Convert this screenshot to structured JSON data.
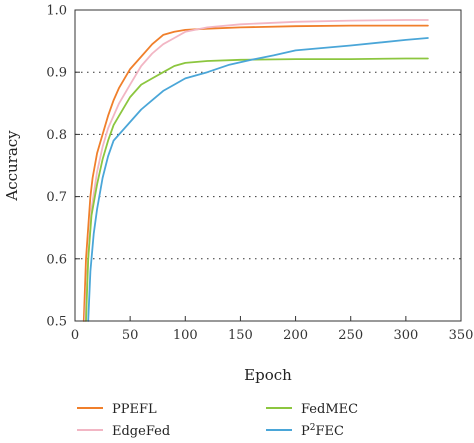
{
  "chart_data": {
    "type": "line",
    "title": "",
    "xlabel": "Epoch",
    "ylabel": "Accuracy",
    "xlim": [
      0,
      350
    ],
    "ylim": [
      0.5,
      1.0
    ],
    "xticks": [
      0,
      50,
      100,
      150,
      200,
      250,
      300,
      350
    ],
    "xtick_labels": [
      "0",
      "50",
      "100",
      "150",
      "200",
      "250",
      "300",
      "350"
    ],
    "yticks": [
      0.5,
      0.6,
      0.7,
      0.8,
      0.9,
      1.0
    ],
    "ytick_labels": [
      "0.5",
      "0.6",
      "0.7",
      "0.8",
      "0.9",
      "1.0"
    ],
    "grid": "dotted, horizontal",
    "legend_position": "below plot, two columns",
    "series": [
      {
        "name": "PPEFL",
        "color": "#f07f2b",
        "x": [
          8,
          10,
          12,
          14,
          16,
          20,
          25,
          30,
          35,
          40,
          45,
          50,
          60,
          70,
          80,
          90,
          100,
          120,
          150,
          200,
          250,
          300,
          320
        ],
        "y": [
          0.5,
          0.6,
          0.65,
          0.7,
          0.73,
          0.77,
          0.8,
          0.83,
          0.855,
          0.875,
          0.89,
          0.905,
          0.925,
          0.945,
          0.96,
          0.965,
          0.968,
          0.97,
          0.972,
          0.974,
          0.975,
          0.975,
          0.975
        ]
      },
      {
        "name": "EdgeFed",
        "color": "#f2b6c4",
        "x": [
          9,
          12,
          15,
          20,
          25,
          30,
          40,
          50,
          60,
          70,
          80,
          90,
          100,
          120,
          150,
          200,
          250,
          300,
          320
        ],
        "y": [
          0.5,
          0.6,
          0.68,
          0.74,
          0.78,
          0.81,
          0.85,
          0.88,
          0.91,
          0.93,
          0.945,
          0.955,
          0.965,
          0.972,
          0.977,
          0.981,
          0.983,
          0.984,
          0.984
        ]
      },
      {
        "name": "FedMEC",
        "color": "#8cc63f",
        "x": [
          10,
          12,
          15,
          20,
          25,
          30,
          35,
          40,
          50,
          60,
          70,
          80,
          90,
          100,
          120,
          150,
          200,
          250,
          300,
          320
        ],
        "y": [
          0.5,
          0.6,
          0.67,
          0.72,
          0.76,
          0.79,
          0.815,
          0.83,
          0.86,
          0.88,
          0.89,
          0.9,
          0.91,
          0.915,
          0.918,
          0.92,
          0.921,
          0.921,
          0.922,
          0.922
        ]
      },
      {
        "name": "P²FEC",
        "color": "#4aa6d8",
        "x": [
          12,
          14,
          17,
          20,
          25,
          30,
          35,
          40,
          50,
          60,
          70,
          80,
          90,
          100,
          120,
          140,
          160,
          180,
          200,
          250,
          300,
          320
        ],
        "y": [
          0.5,
          0.58,
          0.64,
          0.68,
          0.73,
          0.765,
          0.79,
          0.8,
          0.82,
          0.84,
          0.855,
          0.87,
          0.88,
          0.89,
          0.9,
          0.912,
          0.92,
          0.927,
          0.935,
          0.943,
          0.952,
          0.955
        ]
      }
    ]
  },
  "legend": {
    "ppefl": "PPEFL",
    "edgefed": "EdgeFed",
    "fedmec": "FedMEC",
    "p2fec_base": "P",
    "p2fec_sup": "2",
    "p2fec_rest": "FEC"
  }
}
